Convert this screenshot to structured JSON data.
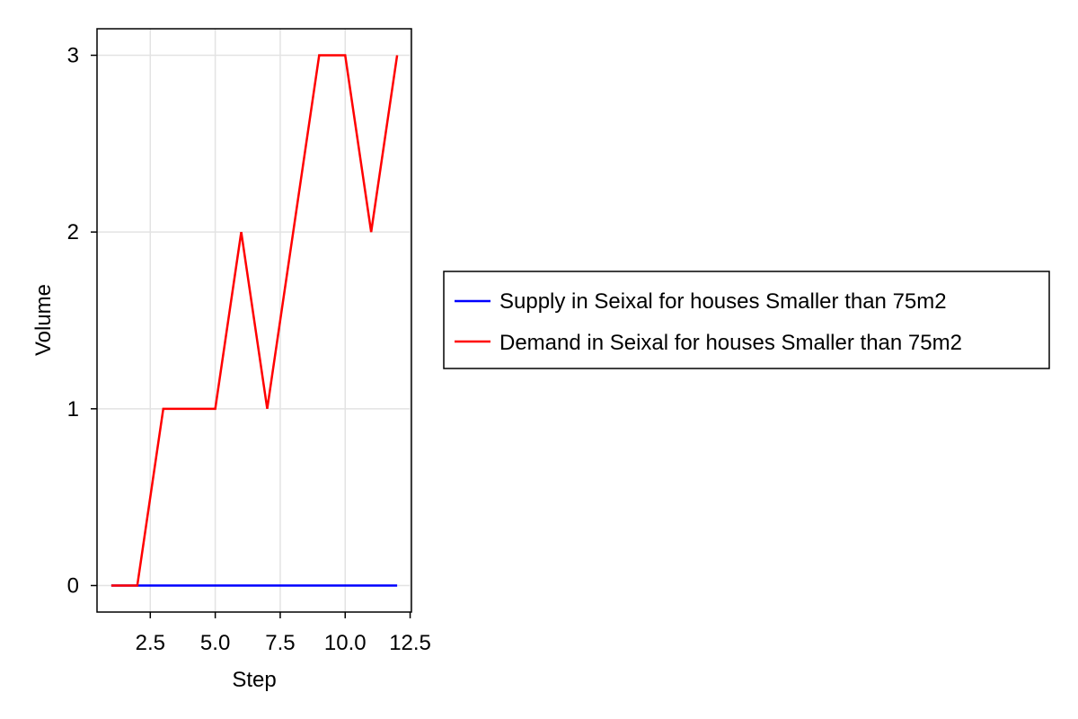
{
  "chart_data": {
    "type": "line",
    "title": "",
    "xlabel": "Step",
    "ylabel": "Volume",
    "xlim": [
      0.45,
      12.55
    ],
    "ylim": [
      -0.15,
      3.15
    ],
    "xticks": [
      2.5,
      5.0,
      7.5,
      10.0,
      12.5
    ],
    "xtick_labels": [
      "2.5",
      "5.0",
      "7.5",
      "10.0",
      "12.5"
    ],
    "yticks": [
      0,
      1,
      2,
      3
    ],
    "ytick_labels": [
      "0",
      "1",
      "2",
      "3"
    ],
    "grid": true,
    "legend_position": "right, outside plot",
    "x": [
      1,
      2,
      3,
      4,
      5,
      6,
      7,
      8,
      9,
      10,
      11,
      12
    ],
    "series": [
      {
        "name": "Supply in Seixal for houses Smaller than 75m2",
        "color": "#0000ff",
        "values": [
          0,
          0,
          0,
          0,
          0,
          0,
          0,
          0,
          0,
          0,
          0,
          0
        ]
      },
      {
        "name": "Demand in Seixal for houses Smaller than 75m2",
        "color": "#ff0000",
        "values": [
          0,
          0,
          1,
          1,
          1,
          2,
          1,
          2,
          3,
          3,
          2,
          3
        ]
      }
    ]
  }
}
